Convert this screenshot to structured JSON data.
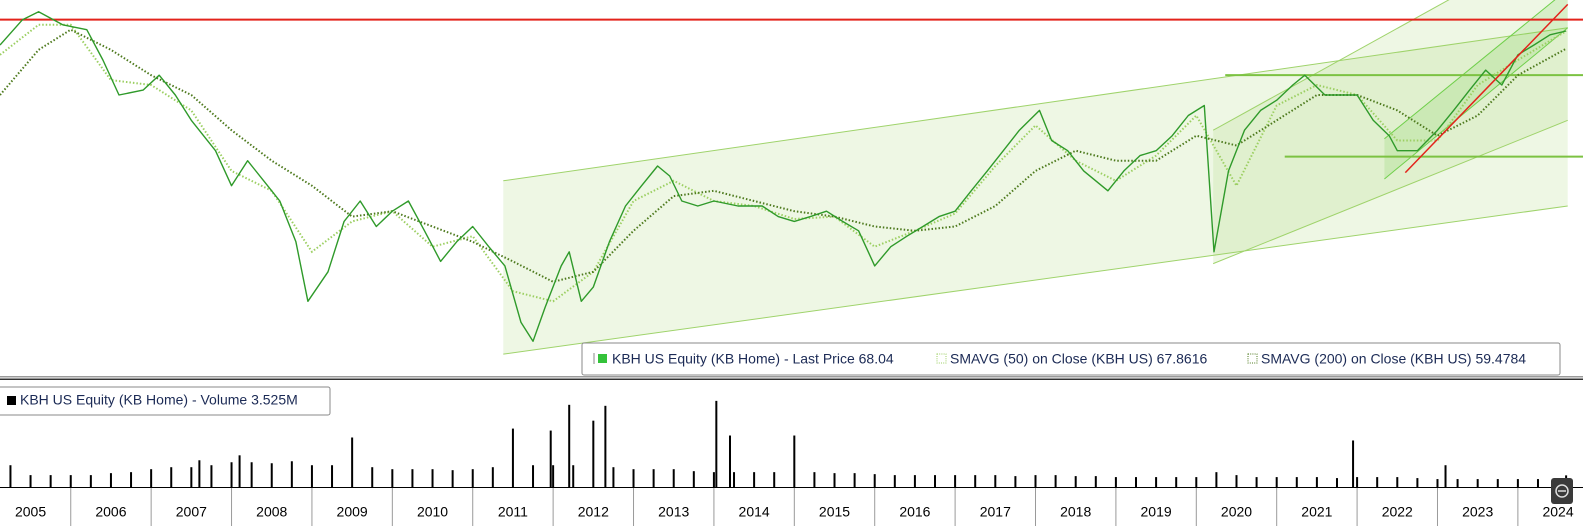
{
  "chart_data": [
    {
      "type": "line",
      "log_y": true,
      "xlim": [
        2005.12,
        2024.81
      ],
      "ylim": [
        5,
        86
      ],
      "series": [
        {
          "name": "KBH US Equity (KB Home) - Last Price 68.04",
          "color": "#2f9a2a",
          "style": "solid",
          "x": [
            2005.12,
            2005.4,
            2005.6,
            2005.9,
            2006.2,
            2006.4,
            2006.6,
            2006.9,
            2007.1,
            2007.3,
            2007.5,
            2007.8,
            2008.0,
            2008.2,
            2008.4,
            2008.6,
            2008.8,
            2008.95,
            2009.2,
            2009.4,
            2009.6,
            2009.8,
            2010.0,
            2010.2,
            2010.4,
            2010.6,
            2010.8,
            2011.0,
            2011.2,
            2011.4,
            2011.6,
            2011.75,
            2011.9,
            2012.1,
            2012.2,
            2012.35,
            2012.5,
            2012.7,
            2012.9,
            2013.1,
            2013.3,
            2013.45,
            2013.6,
            2013.8,
            2014.0,
            2014.3,
            2014.6,
            2014.8,
            2015.0,
            2015.2,
            2015.4,
            2015.6,
            2015.8,
            2016.0,
            2016.2,
            2016.4,
            2016.6,
            2016.8,
            2017.0,
            2017.2,
            2017.4,
            2017.6,
            2017.8,
            2018.05,
            2018.2,
            2018.4,
            2018.6,
            2018.9,
            2019.1,
            2019.3,
            2019.5,
            2019.7,
            2019.9,
            2020.1,
            2020.22,
            2020.4,
            2020.6,
            2020.8,
            2021.0,
            2021.2,
            2021.35,
            2021.6,
            2021.8,
            2022.0,
            2022.2,
            2022.4,
            2022.5,
            2022.75,
            2023.0,
            2023.2,
            2023.4,
            2023.6,
            2023.8,
            2024.0,
            2024.2,
            2024.4,
            2024.6
          ],
          "values": [
            61.2,
            74.1,
            78.7,
            71.3,
            68.7,
            54.6,
            41.9,
            43.5,
            48.7,
            41.9,
            34.6,
            27.5,
            21.1,
            25.5,
            21.9,
            18.8,
            13.8,
            8.8,
            11.0,
            16.1,
            18.8,
            15.5,
            17.4,
            18.8,
            15.0,
            11.9,
            13.8,
            15.5,
            13.3,
            11.5,
            7.5,
            6.5,
            8.4,
            11.5,
            12.8,
            8.8,
            9.8,
            13.8,
            18.1,
            21.1,
            24.5,
            22.7,
            18.8,
            18.1,
            18.8,
            18.1,
            18.1,
            16.7,
            16.1,
            16.7,
            17.4,
            16.1,
            15.0,
            11.5,
            13.3,
            14.4,
            15.5,
            16.7,
            17.4,
            20.3,
            23.6,
            27.5,
            32.1,
            37.3,
            29.7,
            27.5,
            23.6,
            20.3,
            23.6,
            26.5,
            27.5,
            30.8,
            35.9,
            38.7,
            12.8,
            23.6,
            32.1,
            37.3,
            40.3,
            45.2,
            48.7,
            41.9,
            41.9,
            41.9,
            34.6,
            30.8,
            27.5,
            27.5,
            32.1,
            37.3,
            43.5,
            50.6,
            45.2,
            56.8,
            61.2,
            66.1,
            68.04
          ]
        },
        {
          "name": "SMAVG (50)  on Close (KBH US) 67.8616",
          "color": "#9ccf62",
          "style": "dotted",
          "x": [
            2005.12,
            2005.6,
            2006.0,
            2006.5,
            2007.0,
            2007.5,
            2008.0,
            2008.5,
            2009.0,
            2009.5,
            2010.0,
            2010.5,
            2011.0,
            2011.5,
            2012.0,
            2012.5,
            2013.0,
            2013.5,
            2014.0,
            2014.5,
            2015.0,
            2015.5,
            2016.0,
            2016.5,
            2017.0,
            2017.5,
            2018.0,
            2018.5,
            2019.0,
            2019.5,
            2020.0,
            2020.5,
            2021.0,
            2021.5,
            2022.0,
            2022.5,
            2023.0,
            2023.5,
            2024.0,
            2024.6
          ],
          "values": [
            56.8,
            71.3,
            71.3,
            46.9,
            45.2,
            37.3,
            23.6,
            20.3,
            12.8,
            16.1,
            17.4,
            13.3,
            14.4,
            9.5,
            8.8,
            11.0,
            18.8,
            21.9,
            18.8,
            18.1,
            16.4,
            16.7,
            13.3,
            15.0,
            17.1,
            24.5,
            33.3,
            25.5,
            21.9,
            26.5,
            35.9,
            21.1,
            38.7,
            45.2,
            41.9,
            29.7,
            29.7,
            45.2,
            54.6,
            67.9
          ]
        },
        {
          "name": "SMAVG (200)  on Close (KBH US) 59.4784",
          "color": "#4e7a1e",
          "style": "dotted",
          "x": [
            2005.12,
            2005.6,
            2006.0,
            2006.5,
            2007.0,
            2007.5,
            2008.0,
            2008.5,
            2009.0,
            2009.5,
            2010.0,
            2010.5,
            2011.0,
            2011.5,
            2012.0,
            2012.5,
            2013.0,
            2013.5,
            2014.0,
            2014.5,
            2015.0,
            2015.5,
            2016.0,
            2016.5,
            2017.0,
            2017.5,
            2018.0,
            2018.5,
            2019.0,
            2019.5,
            2020.0,
            2020.5,
            2021.0,
            2021.5,
            2022.0,
            2022.5,
            2023.0,
            2023.5,
            2024.0,
            2024.6
          ],
          "values": [
            41.9,
            59.0,
            68.7,
            59.0,
            48.7,
            41.9,
            32.1,
            25.5,
            21.1,
            16.7,
            17.4,
            15.5,
            13.8,
            11.9,
            10.2,
            11.0,
            15.0,
            19.5,
            20.3,
            18.8,
            17.4,
            16.7,
            15.5,
            15.0,
            15.5,
            18.1,
            23.6,
            27.5,
            25.5,
            25.5,
            30.8,
            28.6,
            34.6,
            41.9,
            41.9,
            37.3,
            30.8,
            35.9,
            48.7,
            59.5
          ]
        }
      ],
      "hlines": [
        {
          "value": 74.1,
          "x_start": 2005.12,
          "color": "#e3231b"
        },
        {
          "value": 48.7,
          "x_start": 2020.36,
          "color": "#7cc242"
        },
        {
          "value": 26.3,
          "x_start": 2021.1,
          "color": "#7cc242"
        }
      ],
      "channels": [
        {
          "x": [
            2011.38,
            2024.62
          ],
          "lower": [
            5.9,
            18.1
          ],
          "upper": [
            21.9,
            69.7
          ],
          "color": "#9fd36b"
        },
        {
          "x": [
            2020.21,
            2024.62
          ],
          "lower": [
            11.7,
            34.6
          ],
          "upper": [
            32.1,
            141.7
          ],
          "color": "#9fd36b"
        },
        {
          "x": [
            2022.34,
            2024.62
          ],
          "lower": [
            22.2,
            69.7
          ],
          "upper": [
            30.1,
            93.2
          ],
          "color": "#6fcf4a"
        }
      ],
      "trendline": {
        "x": [
          2022.6,
          2024.62
        ],
        "values": [
          23.3,
          83.2
        ],
        "color": "#e3231b"
      }
    },
    {
      "type": "bar",
      "xlim": [
        2005.12,
        2024.81
      ],
      "ylim": [
        0,
        30
      ],
      "series": [
        {
          "name": "KBH US Equity (KB Home) - Volume 3.525M",
          "color": "#000000",
          "x": [
            2005.25,
            2005.5,
            2005.75,
            2006.0,
            2006.25,
            2006.5,
            2006.75,
            2007.0,
            2007.25,
            2007.5,
            2007.6,
            2007.75,
            2008.0,
            2008.1,
            2008.25,
            2008.5,
            2008.75,
            2009.0,
            2009.25,
            2009.5,
            2009.75,
            2010.0,
            2010.25,
            2010.5,
            2010.75,
            2011.0,
            2011.25,
            2011.5,
            2011.75,
            2011.97,
            2012.0,
            2012.2,
            2012.25,
            2012.5,
            2012.65,
            2012.75,
            2013.0,
            2013.25,
            2013.5,
            2013.75,
            2014.0,
            2014.03,
            2014.2,
            2014.25,
            2014.5,
            2014.75,
            2015.0,
            2015.25,
            2015.5,
            2015.75,
            2016.0,
            2016.25,
            2016.5,
            2016.75,
            2017.0,
            2017.25,
            2017.5,
            2017.75,
            2018.0,
            2018.25,
            2018.5,
            2018.75,
            2019.0,
            2019.25,
            2019.5,
            2019.75,
            2020.0,
            2020.25,
            2020.5,
            2020.75,
            2021.0,
            2021.25,
            2021.5,
            2021.75,
            2021.95,
            2022.0,
            2022.25,
            2022.5,
            2022.75,
            2023.0,
            2023.1,
            2023.25,
            2023.5,
            2023.75,
            2024.0,
            2024.25,
            2024.5,
            2024.6
          ],
          "values": [
            6.6,
            3.6,
            3.6,
            3.6,
            3.6,
            4.2,
            4.5,
            5.4,
            6.0,
            6.0,
            8.1,
            6.6,
            7.5,
            9.6,
            7.5,
            7.2,
            7.8,
            6.6,
            6.6,
            15.0,
            6.0,
            5.4,
            5.4,
            5.4,
            5.1,
            5.4,
            6.0,
            17.7,
            6.6,
            17.1,
            6.6,
            24.9,
            6.6,
            20.1,
            24.6,
            6.0,
            5.4,
            5.4,
            5.4,
            4.8,
            4.5,
            26.1,
            15.6,
            4.5,
            4.5,
            4.5,
            15.6,
            4.5,
            4.2,
            4.2,
            3.9,
            3.6,
            3.6,
            3.6,
            3.6,
            3.6,
            3.6,
            3.3,
            3.6,
            3.6,
            3.3,
            3.3,
            3.0,
            3.0,
            3.0,
            3.0,
            3.0,
            4.5,
            3.6,
            3.0,
            3.0,
            3.0,
            3.0,
            2.7,
            14.1,
            3.0,
            3.0,
            3.0,
            2.7,
            2.4,
            6.6,
            2.4,
            2.4,
            2.4,
            2.4,
            2.4,
            2.4,
            3.525
          ]
        }
      ],
      "xticks": [
        2006,
        2007,
        2008,
        2009,
        2010,
        2011,
        2012,
        2013,
        2014,
        2015,
        2016,
        2017,
        2018,
        2019,
        2020,
        2021,
        2022,
        2023,
        2024
      ],
      "year_labels": [
        2005,
        2006,
        2007,
        2008,
        2009,
        2010,
        2011,
        2012,
        2013,
        2014,
        2015,
        2016,
        2017,
        2018,
        2019,
        2020,
        2021,
        2022,
        2023,
        2024
      ]
    }
  ]
}
